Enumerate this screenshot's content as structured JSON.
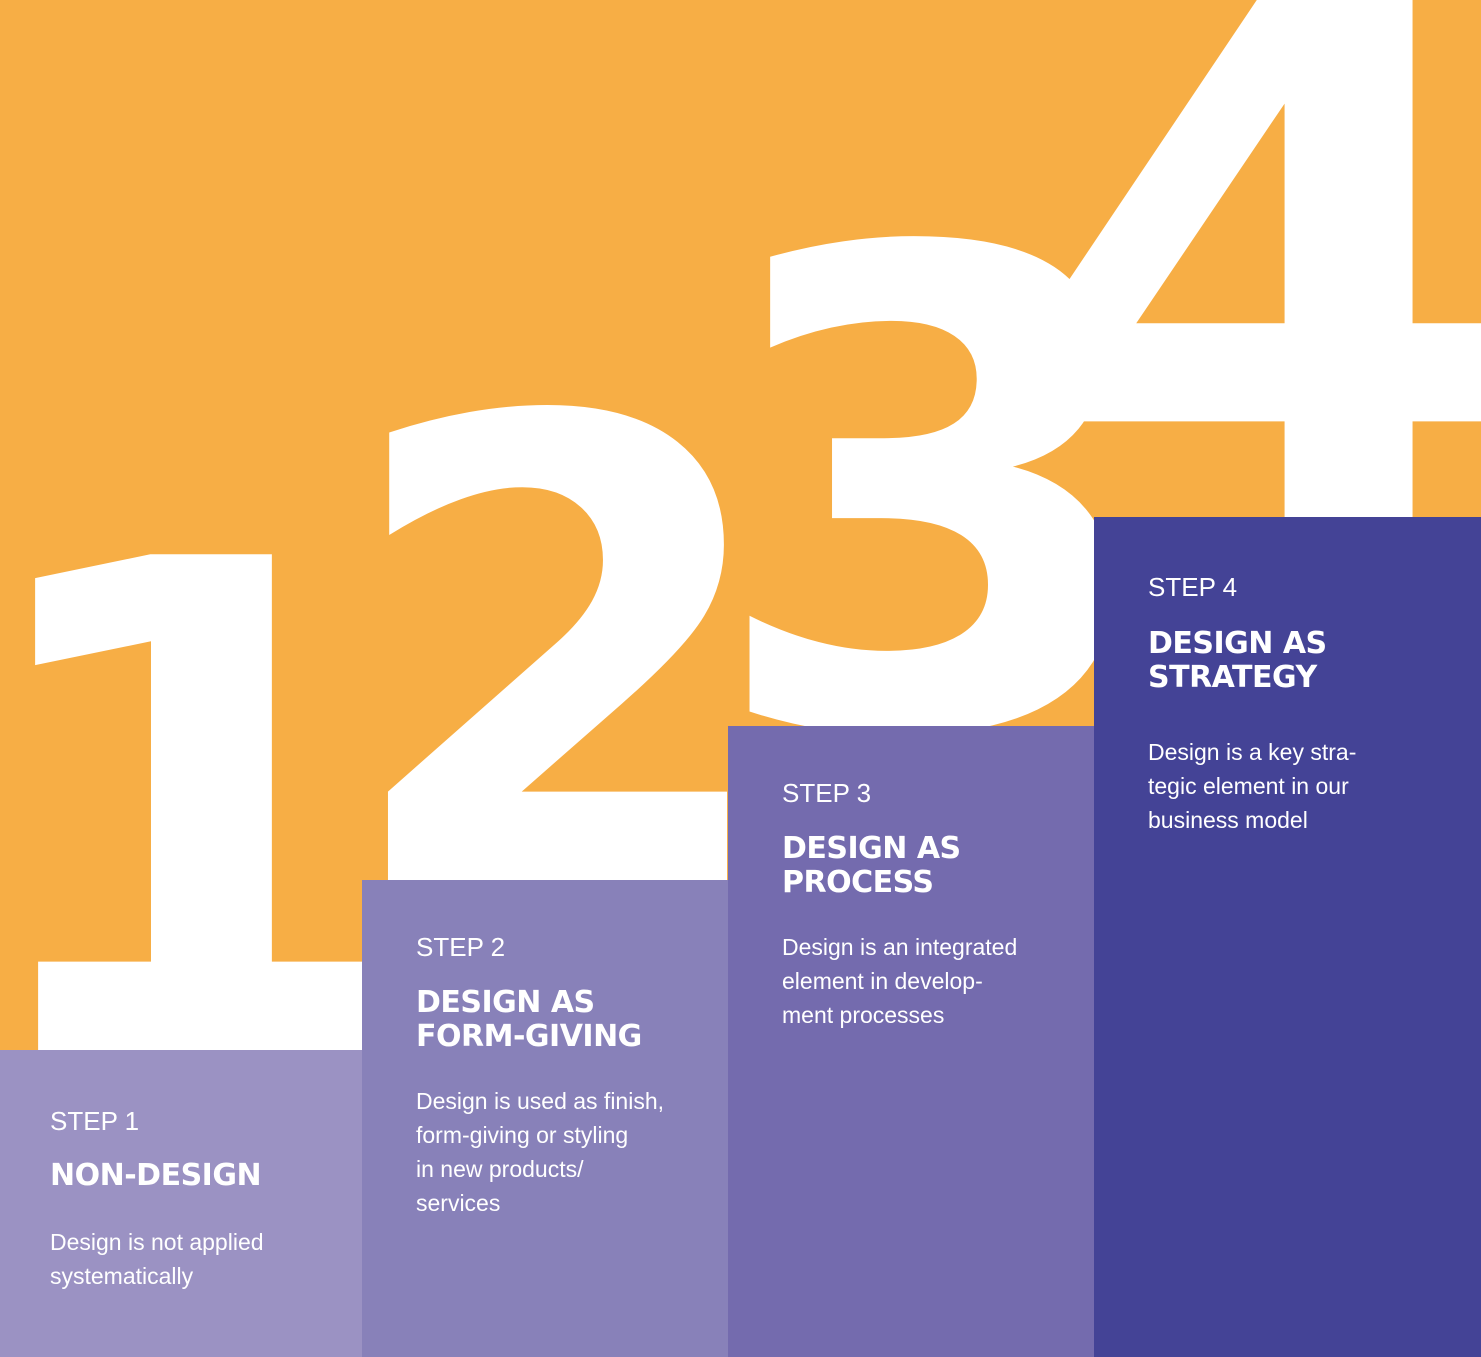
{
  "colors": {
    "background": "#F7AE45",
    "numeral": "#FFFFFF",
    "step1": "#9B92C3",
    "step2": "#8881B9",
    "step3": "#746BAE",
    "step4": "#444396",
    "text": "#FFFFFF"
  },
  "numerals": [
    "1",
    "2",
    "3",
    "4"
  ],
  "steps": [
    {
      "label": "STEP 1",
      "title": "NON-DESIGN",
      "description": "Design is not applied\nsystematically"
    },
    {
      "label": "STEP 2",
      "title": "DESIGN AS\nFORM-GIVING",
      "description": "Design is used as finish,\nform-giving or styling\nin new products/\nservices"
    },
    {
      "label": "STEP 3",
      "title": "DESIGN AS\nPROCESS",
      "description": "Design is an integrated\nelement in develop-\nment processes"
    },
    {
      "label": "STEP 4",
      "title": "DESIGN AS\nSTRATEGY",
      "description": "Design is a key stra-\ntegic element in our\nbusiness model"
    }
  ]
}
